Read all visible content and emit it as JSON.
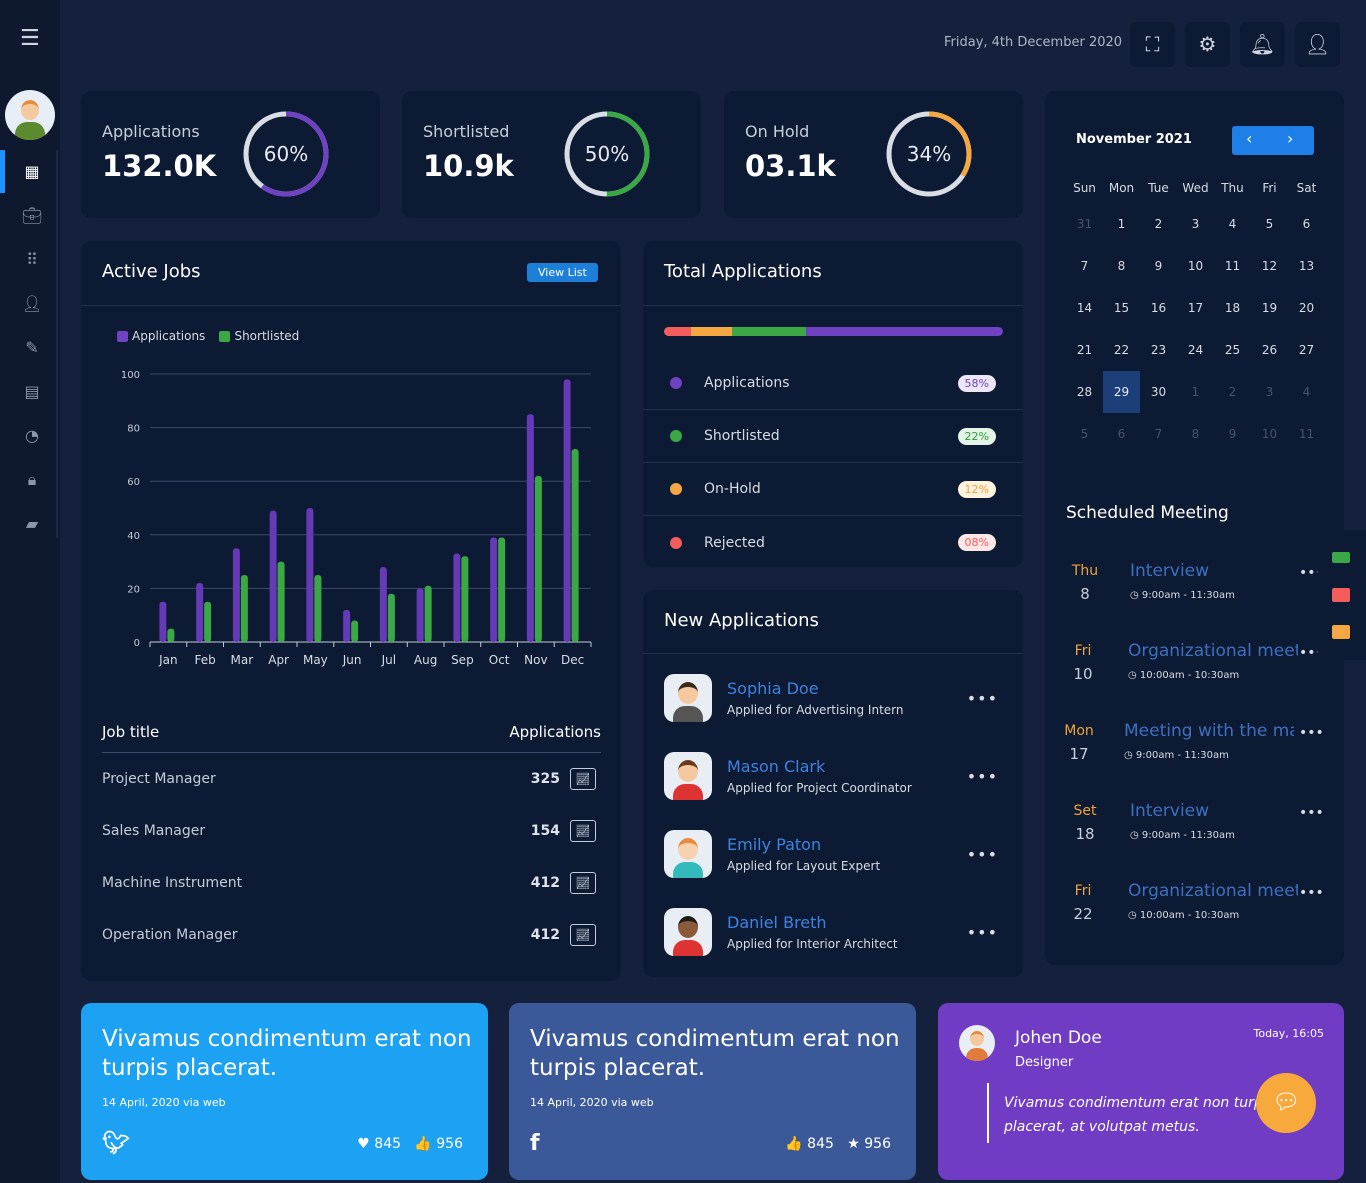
{
  "header": {
    "date": "Friday, 4th December 2020",
    "buttons": [
      "fullscreen-icon",
      "gear-icon",
      "bell-icon",
      "user-icon"
    ]
  },
  "sidebar": {
    "items": [
      "dashboard-icon",
      "briefcase-icon",
      "apps-grid-icon",
      "user-icon",
      "edit-icon",
      "document-icon",
      "pie-chart-icon",
      "lock-icon",
      "message-icon"
    ]
  },
  "stats": [
    {
      "label": "Applications",
      "value": "132.0K",
      "percent": "60%",
      "fraction": 0.6,
      "color": "#6f42c1"
    },
    {
      "label": "Shortlisted",
      "value": "10.9k",
      "percent": "50%",
      "fraction": 0.5,
      "color": "#3aa845"
    },
    {
      "label": "On Hold",
      "value": "03.1k",
      "percent": "34%",
      "fraction": 0.34,
      "color": "#f5a742"
    }
  ],
  "active_jobs": {
    "title": "Active Jobs",
    "view_list": "View List",
    "table_headers": [
      "Job title",
      "Applications"
    ],
    "rows": [
      {
        "title": "Project Manager",
        "count": "325"
      },
      {
        "title": "Sales Manager",
        "count": "154"
      },
      {
        "title": "Machine Instrument",
        "count": "412"
      },
      {
        "title": "Operation Manager",
        "count": "412"
      }
    ]
  },
  "chart_data": {
    "type": "bar",
    "categories": [
      "Jan",
      "Feb",
      "Mar",
      "Apr",
      "May",
      "Jun",
      "Jul",
      "Aug",
      "Sep",
      "Oct",
      "Nov",
      "Dec"
    ],
    "series": [
      {
        "name": "Applications",
        "color": "#6639b7",
        "values": [
          15,
          22,
          35,
          49,
          50,
          12,
          28,
          20,
          33,
          39,
          85,
          98
        ]
      },
      {
        "name": "Shortlisted",
        "color": "#3aa845",
        "values": [
          5,
          15,
          25,
          30,
          25,
          8,
          18,
          21,
          32,
          39,
          62,
          72
        ]
      }
    ],
    "yticks": [
      "0",
      "20",
      "40",
      "60",
      "80",
      "100"
    ],
    "ylim": [
      0,
      100
    ],
    "grid": true,
    "legend": "top-left"
  },
  "total_applications": {
    "title": "Total Applications",
    "bar": [
      {
        "color": "#f55d5d",
        "fraction": 0.08
      },
      {
        "color": "#f5a742",
        "fraction": 0.12
      },
      {
        "color": "#3aa845",
        "fraction": 0.22
      },
      {
        "color": "#6f42c1",
        "fraction": 0.58
      }
    ],
    "items": [
      {
        "label": "Applications",
        "pct": "58%",
        "color": "#6f42c1",
        "fg": "#6f42c1",
        "bg": "#ece6f8"
      },
      {
        "label": "Shortlisted",
        "pct": "22%",
        "color": "#3aa845",
        "fg": "#2f9a3e",
        "bg": "#e4f5e6"
      },
      {
        "label": "On-Hold",
        "pct": "12%",
        "color": "#f5a742",
        "fg": "#f0a33a",
        "bg": "#fff2df"
      },
      {
        "label": "Rejected",
        "pct": "08%",
        "color": "#f55d5d",
        "fg": "#f55d5d",
        "bg": "#fde6e6"
      }
    ]
  },
  "new_applications": {
    "title": "New Applications",
    "items": [
      {
        "name": "Sophia Doe",
        "sub": "Applied for Advertising Intern"
      },
      {
        "name": "Mason Clark",
        "sub": "Applied for Project Coordinator"
      },
      {
        "name": "Emily Paton",
        "sub": "Applied for Layout Expert"
      },
      {
        "name": "Daniel Breth",
        "sub": "Applied for Interior Architect"
      }
    ]
  },
  "calendar": {
    "month": "November 2021",
    "weekdays": [
      "Sun",
      "Mon",
      "Tue",
      "Wed",
      "Thu",
      "Fri",
      "Sat"
    ],
    "days": [
      "31",
      "1",
      "2",
      "3",
      "4",
      "5",
      "6",
      "7",
      "8",
      "9",
      "10",
      "11",
      "12",
      "13",
      "14",
      "15",
      "16",
      "17",
      "18",
      "19",
      "20",
      "21",
      "22",
      "23",
      "24",
      "25",
      "26",
      "27",
      "28",
      "29",
      "30",
      "1",
      "2",
      "3",
      "4",
      "5",
      "6",
      "7",
      "8",
      "9",
      "10",
      "11"
    ],
    "selected": "29"
  },
  "meetings": {
    "title": "Scheduled Meeting",
    "items": [
      {
        "day": "Thu",
        "date": "8",
        "title": "Interview",
        "time": "◷ 9:00am - 11:30am"
      },
      {
        "day": "Fri",
        "date": "10",
        "title": "Organizational meetin",
        "time": "◷ 10:00am - 10:30am"
      },
      {
        "day": "Mon",
        "date": "17",
        "title": "Meeting with the mana",
        "time": "◷ 9:00am - 11:30am"
      },
      {
        "day": "Set",
        "date": "18",
        "title": "Interview",
        "time": "◷ 9:00am - 11:30am"
      },
      {
        "day": "Fri",
        "date": "22",
        "title": "Organizational meetin",
        "time": "◷ 10:00am - 10:30am"
      }
    ]
  },
  "posts": [
    {
      "text": "Vivamus condimentum erat non turpis placerat.",
      "date": "14 April, 2020 via web",
      "likes": "♥ 845",
      "shares": "👍 956",
      "color": "#1da1f2"
    },
    {
      "text": "Vivamus condimentum erat non turpis placerat.",
      "date": "14 April, 2020 via web",
      "likes": "👍 845",
      "shares": "★ 956",
      "color": "#3b5998"
    }
  ],
  "testimonial": {
    "name": "Johen Doe",
    "role": "Designer",
    "time": "Today, 16:05",
    "quote": "Vivamus condimentum erat non turpis placerat, at volutpat metus.",
    "color": "#6f3cc3"
  }
}
